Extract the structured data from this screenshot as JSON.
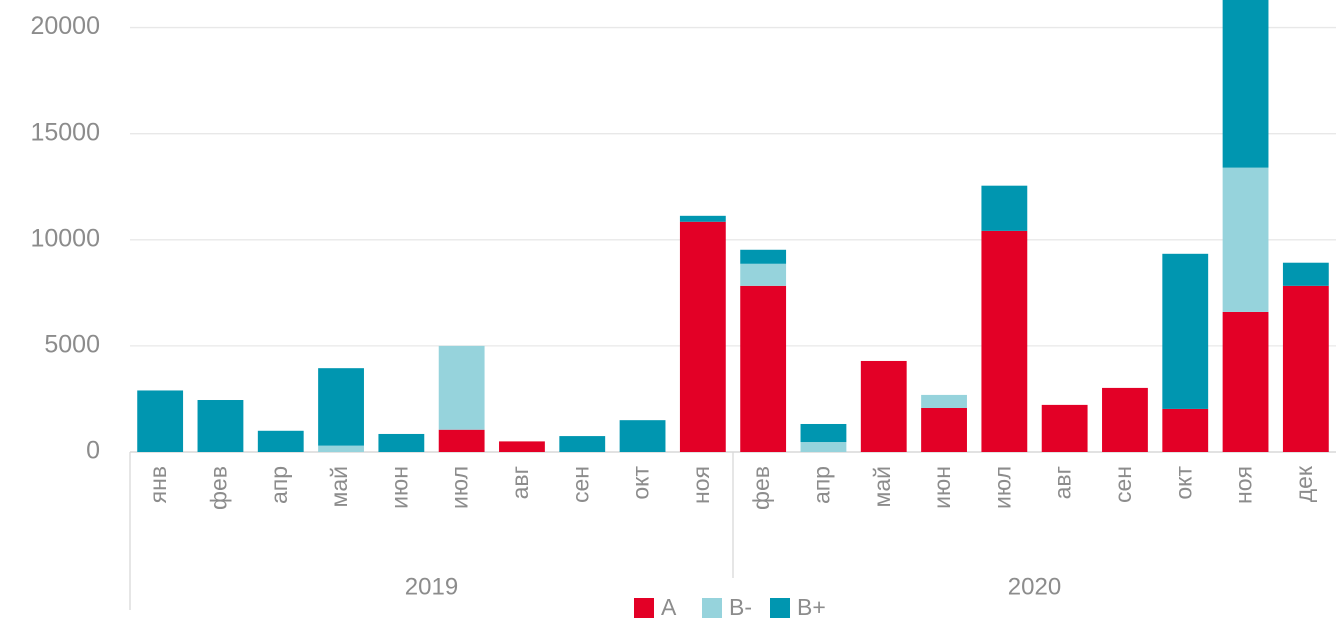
{
  "chart_data": {
    "type": "stacked_bar",
    "categories": [
      "янв",
      "фев",
      "апр",
      "май",
      "июн",
      "июл",
      "авг",
      "сен",
      "окт",
      "ноя",
      "фев",
      "апр",
      "май",
      "июн",
      "июл",
      "авг",
      "сен",
      "окт",
      "ноя",
      "дек"
    ],
    "category_groups": [
      "2019",
      "2020"
    ],
    "series": [
      {
        "name": "A",
        "color": "#e30026",
        "values": [
          0,
          0,
          0,
          0,
          0,
          1050,
          500,
          0,
          0,
          10850,
          7830,
          0,
          4290,
          2075,
          10420,
          2220,
          3020,
          2030,
          6600,
          7830
        ]
      },
      {
        "name": "B-",
        "color": "#96d3dc",
        "values": [
          0,
          0,
          0,
          300,
          0,
          3950,
          0,
          0,
          0,
          0,
          1040,
          470,
          0,
          615,
          0,
          0,
          0,
          0,
          6800,
          0
        ]
      },
      {
        "name": "B+",
        "color": "#0096b0",
        "values": [
          2900,
          2450,
          1000,
          3650,
          850,
          0,
          0,
          750,
          1500,
          280,
          660,
          850,
          0,
          0,
          2130,
          0,
          0,
          7310,
          8500,
          1090
        ]
      }
    ],
    "ylim": [
      0,
      21300
    ],
    "yticks": [
      0,
      5000,
      10000,
      15000,
      20000
    ],
    "grid": true,
    "legend": "bottom"
  }
}
